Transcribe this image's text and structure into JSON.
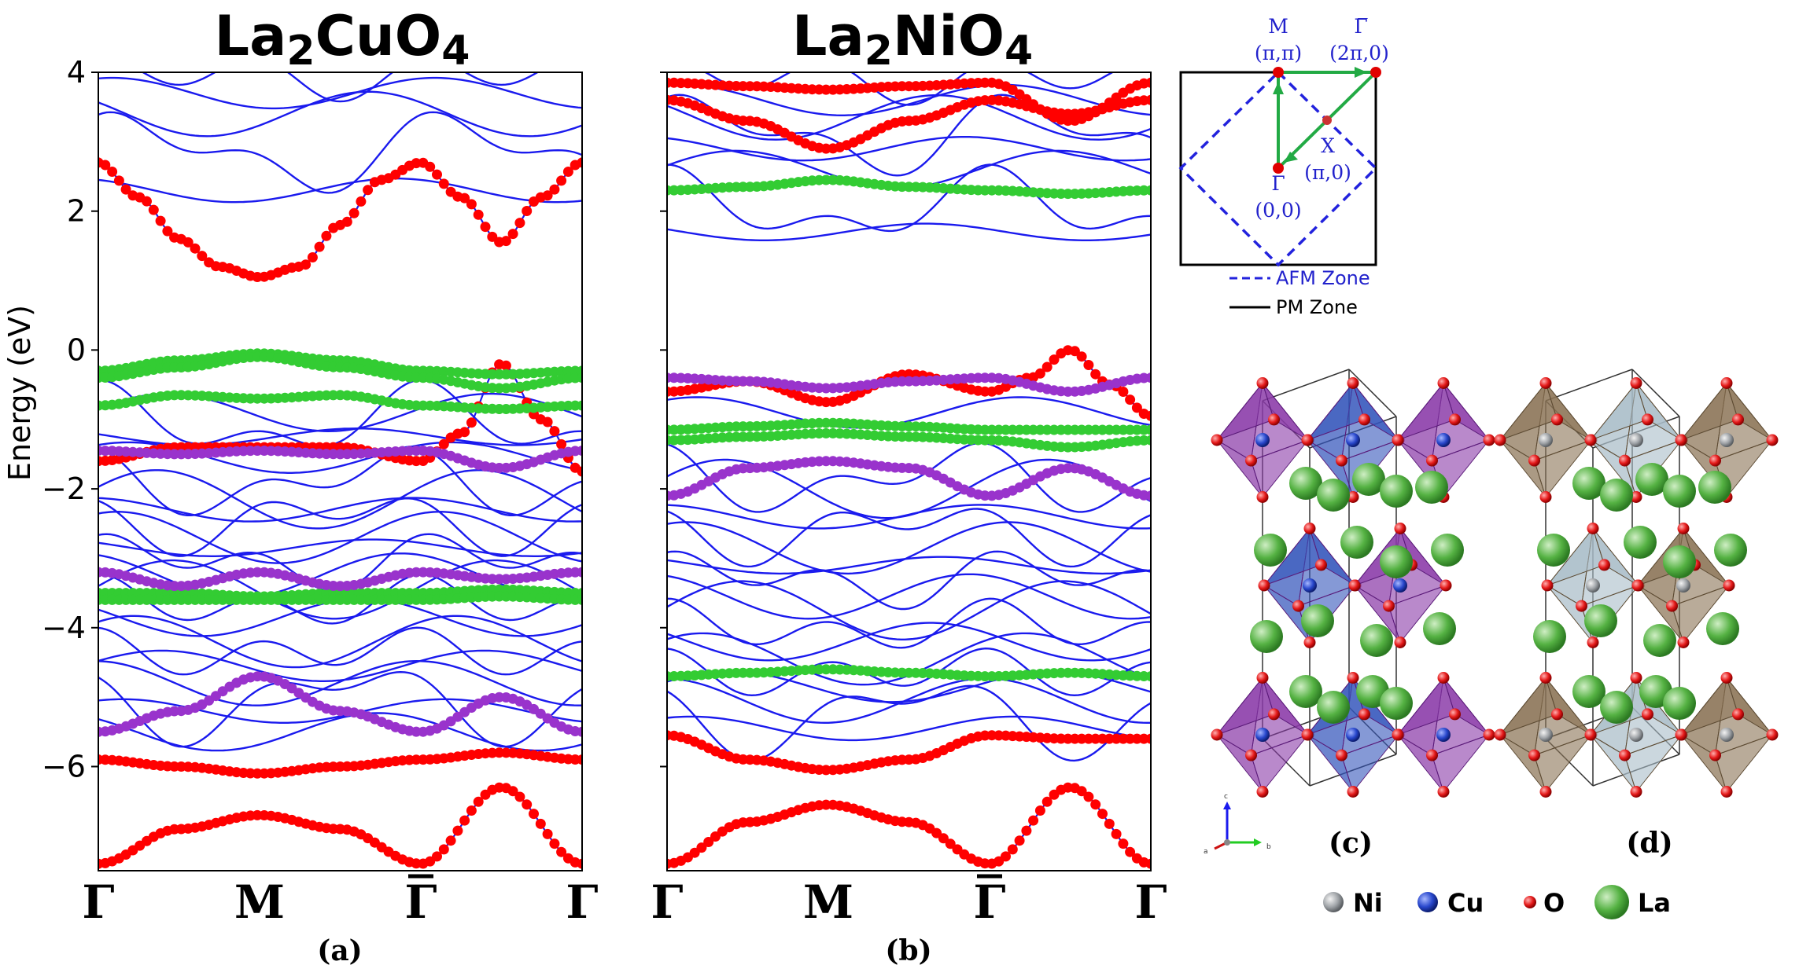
{
  "chart_data": [
    {
      "type": "line",
      "panel": "a",
      "title_base": "La",
      "title_sub1": "2",
      "title_mid": "CuO",
      "title_sub2": "4",
      "ylabel": "Energy (eV)",
      "ylim": [
        -7.5,
        4.0
      ],
      "yticks": [
        4,
        2,
        0,
        -2,
        -4,
        -6
      ],
      "ytick_labels": [
        "4",
        "2",
        "0",
        "−2",
        "−4",
        "−6"
      ],
      "xticks": [
        0,
        1,
        2,
        3
      ],
      "xtick_labels": [
        "Γ",
        "M",
        "Γ̅",
        "Γ"
      ],
      "xlabel": "(a)",
      "blue_band_levels": [
        3.95,
        3.7,
        3.4,
        2.85,
        2.3,
        -0.9,
        -1.05,
        -1.25,
        -1.55,
        -1.9,
        -2.15,
        -2.3,
        -2.45,
        -2.7,
        -2.85,
        -3.05,
        -3.25,
        -3.45,
        -3.65,
        -3.85,
        -4.2,
        -4.35,
        -4.55,
        -4.8,
        -5.05,
        -5.2,
        -5.5
      ],
      "series": [
        {
          "name": "O red (conduction)",
          "color": "#ff0000",
          "x": [
            0,
            0.25,
            0.5,
            0.75,
            1,
            1.25,
            1.5,
            1.75,
            2,
            2.25,
            2.5,
            2.75,
            3
          ],
          "values": [
            2.7,
            2.2,
            1.6,
            1.2,
            1.05,
            1.2,
            1.8,
            2.45,
            2.7,
            2.2,
            1.55,
            2.2,
            2.7
          ]
        },
        {
          "name": "O red (valence top)",
          "color": "#ff0000",
          "x": [
            0,
            0.5,
            1,
            1.5,
            2,
            2.25,
            2.5,
            2.75,
            3
          ],
          "values": [
            -1.6,
            -1.4,
            -1.4,
            -1.4,
            -1.6,
            -1.2,
            -0.2,
            -1.0,
            -1.75
          ]
        },
        {
          "name": "O red (lower)",
          "color": "#ff0000",
          "x": [
            0,
            0.5,
            1,
            1.5,
            2,
            2.5,
            3
          ],
          "values": [
            -5.9,
            -6.0,
            -6.1,
            -6.0,
            -5.9,
            -5.8,
            -5.9
          ]
        },
        {
          "name": "O red (bottom)",
          "color": "#ff0000",
          "x": [
            0,
            0.5,
            1,
            1.5,
            2,
            2.5,
            3
          ],
          "values": [
            -7.4,
            -6.9,
            -6.7,
            -6.9,
            -7.4,
            -6.3,
            -7.4
          ]
        },
        {
          "name": "green 1",
          "color": "#33cc33",
          "x": [
            0,
            0.5,
            1,
            1.5,
            2,
            2.5,
            3
          ],
          "values": [
            -0.3,
            -0.15,
            -0.05,
            -0.15,
            -0.3,
            -0.35,
            -0.3
          ]
        },
        {
          "name": "green 2",
          "color": "#33cc33",
          "x": [
            0,
            0.5,
            1,
            1.5,
            2,
            2.5,
            3
          ],
          "values": [
            -0.4,
            -0.25,
            -0.1,
            -0.25,
            -0.4,
            -0.55,
            -0.4
          ]
        },
        {
          "name": "green 3",
          "color": "#33cc33",
          "x": [
            0,
            0.5,
            1,
            1.5,
            2,
            2.5,
            3
          ],
          "values": [
            -0.8,
            -0.65,
            -0.7,
            -0.65,
            -0.8,
            -0.85,
            -0.8
          ]
        },
        {
          "name": "green 4",
          "color": "#33cc33",
          "x": [
            0,
            0.5,
            1,
            1.5,
            2,
            2.5,
            3
          ],
          "values": [
            -3.5,
            -3.5,
            -3.55,
            -3.5,
            -3.5,
            -3.45,
            -3.5
          ]
        },
        {
          "name": "green 5",
          "color": "#33cc33",
          "x": [
            0,
            0.5,
            1,
            1.5,
            2,
            2.5,
            3
          ],
          "values": [
            -3.6,
            -3.6,
            -3.6,
            -3.6,
            -3.6,
            -3.55,
            -3.6
          ]
        },
        {
          "name": "purple 1",
          "color": "#9933cc",
          "x": [
            0,
            0.5,
            1,
            1.5,
            2,
            2.5,
            3
          ],
          "values": [
            -1.45,
            -1.5,
            -1.45,
            -1.5,
            -1.45,
            -1.7,
            -1.45
          ]
        },
        {
          "name": "purple 2",
          "color": "#9933cc",
          "x": [
            0,
            0.5,
            1,
            1.5,
            2,
            2.5,
            3
          ],
          "values": [
            -3.2,
            -3.4,
            -3.2,
            -3.4,
            -3.2,
            -3.3,
            -3.2
          ]
        },
        {
          "name": "purple 3",
          "color": "#9933cc",
          "x": [
            0,
            0.5,
            1,
            1.5,
            2,
            2.5,
            3
          ],
          "values": [
            -5.5,
            -5.2,
            -4.7,
            -5.2,
            -5.5,
            -5.0,
            -5.5
          ]
        }
      ]
    },
    {
      "type": "line",
      "panel": "b",
      "title_base": "La",
      "title_sub1": "2",
      "title_mid": "NiO",
      "title_sub2": "4",
      "ylim": [
        -7.5,
        4.0
      ],
      "xtick_labels": [
        "Γ",
        "M",
        "Γ̅",
        "Γ"
      ],
      "xlabel": "(b)",
      "blue_band_levels": [
        3.9,
        3.6,
        3.35,
        3.1,
        2.9,
        2.6,
        2.05,
        1.7,
        -0.9,
        -1.85,
        -2.0,
        -2.4,
        -2.6,
        -2.85,
        -3.1,
        -3.3,
        -3.55,
        -3.75,
        -4.0,
        -4.2,
        -4.45,
        -4.65,
        -4.85,
        -5.05,
        -5.25,
        -5.45
      ],
      "series": [
        {
          "name": "O red (top)",
          "color": "#ff0000",
          "x": [
            0,
            0.5,
            1,
            1.5,
            2,
            2.5,
            3
          ],
          "values": [
            3.85,
            3.8,
            3.75,
            3.8,
            3.85,
            3.3,
            3.85
          ]
        },
        {
          "name": "O red (2)",
          "color": "#ff0000",
          "x": [
            0,
            0.5,
            1,
            1.5,
            2,
            2.5,
            3
          ],
          "values": [
            3.6,
            3.3,
            2.9,
            3.3,
            3.6,
            3.4,
            3.6
          ]
        },
        {
          "name": "green conduction",
          "color": "#33cc33",
          "x": [
            0,
            0.5,
            1,
            1.5,
            2,
            2.5,
            3
          ],
          "values": [
            2.3,
            2.35,
            2.45,
            2.35,
            2.3,
            2.25,
            2.3
          ]
        },
        {
          "name": "red valence",
          "color": "#ff0000",
          "x": [
            0,
            0.5,
            1,
            1.5,
            2,
            2.25,
            2.5,
            2.75,
            3
          ],
          "values": [
            -0.6,
            -0.45,
            -0.75,
            -0.35,
            -0.6,
            -0.4,
            0.0,
            -0.5,
            -0.95
          ]
        },
        {
          "name": "purple 1",
          "color": "#9933cc",
          "x": [
            0,
            0.5,
            1,
            1.5,
            2,
            2.5,
            3
          ],
          "values": [
            -0.4,
            -0.45,
            -0.55,
            -0.45,
            -0.4,
            -0.6,
            -0.4
          ]
        },
        {
          "name": "green 1",
          "color": "#33cc33",
          "x": [
            0,
            0.5,
            1,
            1.5,
            2,
            2.5,
            3
          ],
          "values": [
            -1.15,
            -1.1,
            -1.05,
            -1.1,
            -1.15,
            -1.15,
            -1.15
          ]
        },
        {
          "name": "green 2",
          "color": "#33cc33",
          "x": [
            0,
            0.5,
            1,
            1.5,
            2,
            2.5,
            3
          ],
          "values": [
            -1.3,
            -1.25,
            -1.2,
            -1.25,
            -1.3,
            -1.4,
            -1.3
          ]
        },
        {
          "name": "purple 2",
          "color": "#9933cc",
          "x": [
            0,
            0.5,
            1,
            1.5,
            2,
            2.5,
            3
          ],
          "values": [
            -2.1,
            -1.7,
            -1.6,
            -1.7,
            -2.1,
            -1.7,
            -2.1
          ]
        },
        {
          "name": "green 3",
          "color": "#33cc33",
          "x": [
            0,
            0.5,
            1,
            1.5,
            2,
            2.5,
            3
          ],
          "values": [
            -4.7,
            -4.65,
            -4.6,
            -4.65,
            -4.7,
            -4.65,
            -4.7
          ]
        },
        {
          "name": "red lower",
          "color": "#ff0000",
          "x": [
            0,
            0.5,
            1,
            1.5,
            2,
            2.5,
            3
          ],
          "values": [
            -5.55,
            -5.9,
            -6.05,
            -5.9,
            -5.55,
            -5.6,
            -5.6
          ]
        },
        {
          "name": "red bottom",
          "color": "#ff0000",
          "x": [
            0,
            0.5,
            1,
            1.5,
            2,
            2.5,
            3
          ],
          "values": [
            -7.4,
            -6.8,
            -6.55,
            -6.8,
            -7.4,
            -6.3,
            -7.4
          ]
        }
      ]
    }
  ],
  "bz": {
    "M_label": "M",
    "M_coord": "(π,π)",
    "Gbar_label": "Γ̅",
    "Gbar_coord": "(2π,0)",
    "X_label": "X",
    "X_coord": "(π,0)",
    "G_label": "Γ",
    "G_coord": "(0,0)",
    "legend_afm": "AFM Zone",
    "legend_pm": "PM Zone"
  },
  "structures": {
    "label_c": "(c)",
    "label_d": "(d)",
    "axes": {
      "a": "a",
      "b": "b",
      "c": "c"
    },
    "legend": [
      {
        "label": "Ni",
        "color": "#9aa0a6"
      },
      {
        "label": "Cu",
        "color": "#2244cc"
      },
      {
        "label": "O",
        "color": "#e01010"
      },
      {
        "label": "La",
        "color": "#44aa33"
      }
    ]
  },
  "colors": {
    "blue": "#1a1aee",
    "red": "#ff0000",
    "green": "#33cc33",
    "purple": "#9933cc",
    "cu_oct": "#8833aa",
    "ni_oct": "#8b7355"
  }
}
